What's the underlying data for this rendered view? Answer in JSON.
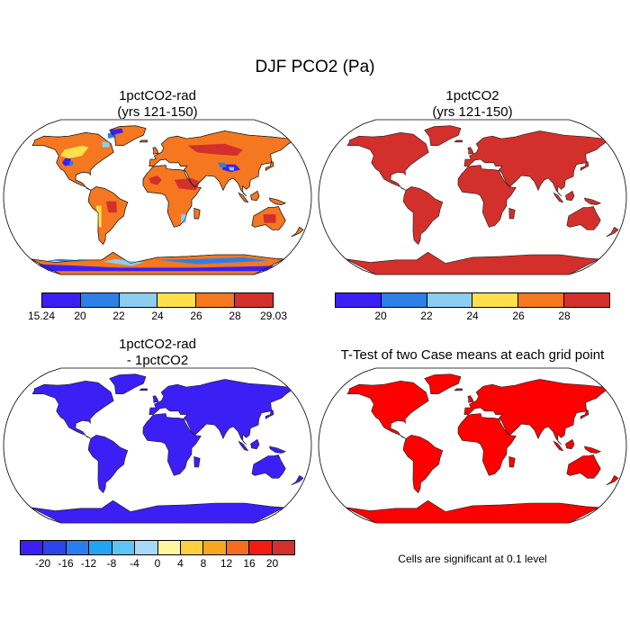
{
  "title": "DJF PCO2 (Pa)",
  "panels": [
    {
      "title_line1": "1pctCO2-rad",
      "title_line2": "(yrs 121-150)"
    },
    {
      "title_line1": "1pctCO2",
      "title_line2": "(yrs 121-150)"
    },
    {
      "title_line1": "1pctCO2-rad",
      "title_line2": "- 1pctCO2"
    },
    {
      "title_line1": "T-Test of two Case means at each grid point",
      "title_line2": ""
    }
  ],
  "colorbars": [
    {
      "colors": [
        "#3a1ff5",
        "#2e7ee8",
        "#8ccdf0",
        "#fde04c",
        "#f5771f",
        "#d3302b"
      ],
      "labels": [
        "15.24",
        "20",
        "22",
        "24",
        "26",
        "28",
        "29.03"
      ]
    },
    {
      "colors": [
        "#3a1ff5",
        "#2e7ee8",
        "#8ccdf0",
        "#fde04c",
        "#f5771f",
        "#d3302b"
      ],
      "labels": [
        "20",
        "22",
        "24",
        "26",
        "28"
      ]
    },
    {
      "colors": [
        "#3b1ff5",
        "#2a46e8",
        "#2a7cf0",
        "#21a5f0",
        "#5ec4f4",
        "#a8daf7",
        "#fff79f",
        "#fdd13d",
        "#f8a521",
        "#f56d1c",
        "#f01c0f",
        "#d3302b"
      ],
      "labels": [
        "-20",
        "-16",
        "-12",
        "-8",
        "-4",
        "0",
        "4",
        "8",
        "12",
        "16",
        "20"
      ]
    }
  ],
  "map_fills": {
    "panel1": {
      "land": "#f5771f",
      "highlights": [
        "#d3302b",
        "#fde04c",
        "#8ccdf0",
        "#2e7ee8",
        "#3a1ff5"
      ]
    },
    "panel2": {
      "land": "#d3302b"
    },
    "panel3": {
      "land": "#3b1ff5"
    },
    "panel4": {
      "land": "#ff0000"
    }
  },
  "significance_note": "Cells are significant at 0.1 level"
}
